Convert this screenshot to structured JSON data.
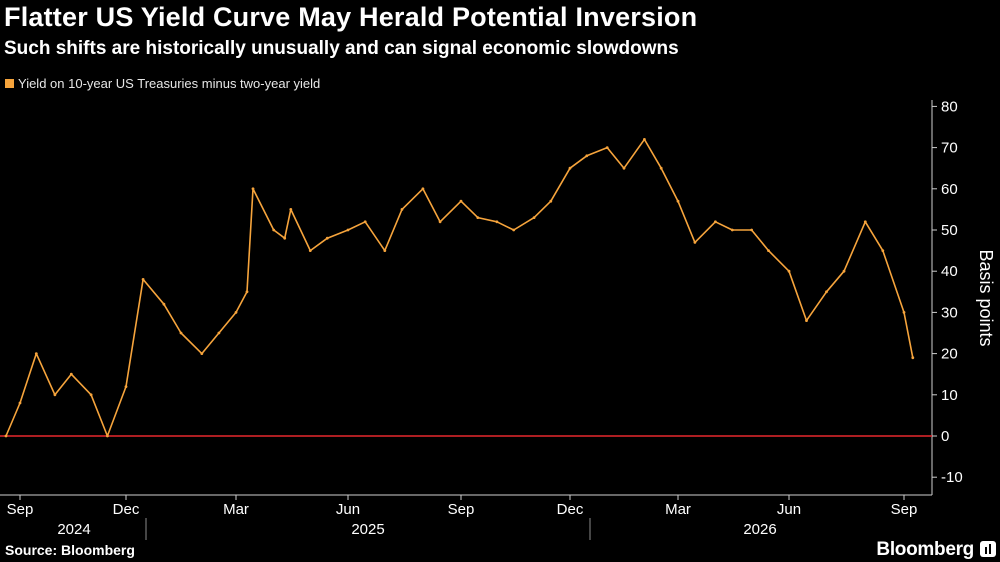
{
  "title": "Flatter US Yield Curve May Herald Potential Inversion",
  "subtitle": "Such shifts are historically unusually and can signal economic slowdowns",
  "source": "Source: Bloomberg",
  "brand": "Bloomberg",
  "colors": {
    "background": "#000000",
    "series": "#f6a43c",
    "zero_line": "#e8282e",
    "text": "#ffffff"
  },
  "chart_data": {
    "type": "line",
    "ylabel": "Basis points",
    "ylim": [
      -13,
      82
    ],
    "yticks": [
      80,
      70,
      60,
      50,
      40,
      30,
      20,
      10,
      0,
      -10
    ],
    "reference_line": 0,
    "grid": false,
    "legend_position": "top-left",
    "x_month_ticks": [
      "Sep",
      "Dec",
      "Mar",
      "Jun",
      "Sep",
      "Dec",
      "Mar",
      "Jun",
      "Sep"
    ],
    "x_year_labels": [
      "2024",
      "2025",
      "2026"
    ],
    "series": [
      {
        "name": "Yield on 10-year US Treasuries minus two-year yield",
        "x": [
          "2024-08-20",
          "2024-09-01",
          "2024-09-15",
          "2024-10-01",
          "2024-10-15",
          "2024-11-01",
          "2024-11-15",
          "2024-12-01",
          "2024-12-15",
          "2025-01-01",
          "2025-01-15",
          "2025-02-01",
          "2025-02-15",
          "2025-03-01",
          "2025-03-10",
          "2025-03-15",
          "2025-04-01",
          "2025-04-10",
          "2025-04-15",
          "2025-05-01",
          "2025-05-15",
          "2025-06-01",
          "2025-06-15",
          "2025-07-01",
          "2025-07-15",
          "2025-08-01",
          "2025-08-15",
          "2025-09-01",
          "2025-09-15",
          "2025-10-01",
          "2025-10-15",
          "2025-11-01",
          "2025-11-15",
          "2025-12-01",
          "2025-12-15",
          "2026-01-01",
          "2026-01-15",
          "2026-02-01",
          "2026-02-15",
          "2026-03-01",
          "2026-03-15",
          "2026-04-01",
          "2026-04-15",
          "2026-05-01",
          "2026-05-15",
          "2026-06-01",
          "2026-06-15",
          "2026-07-01",
          "2026-07-15",
          "2026-08-01",
          "2026-08-15",
          "2026-09-01",
          "2026-09-08"
        ],
        "values": [
          0,
          8,
          20,
          10,
          15,
          10,
          0,
          12,
          38,
          32,
          25,
          20,
          25,
          30,
          35,
          60,
          50,
          48,
          55,
          45,
          48,
          50,
          52,
          45,
          55,
          60,
          52,
          57,
          53,
          52,
          50,
          53,
          57,
          65,
          68,
          70,
          65,
          72,
          65,
          57,
          47,
          52,
          50,
          50,
          45,
          40,
          28,
          35,
          40,
          52,
          45,
          30,
          19
        ]
      }
    ]
  }
}
